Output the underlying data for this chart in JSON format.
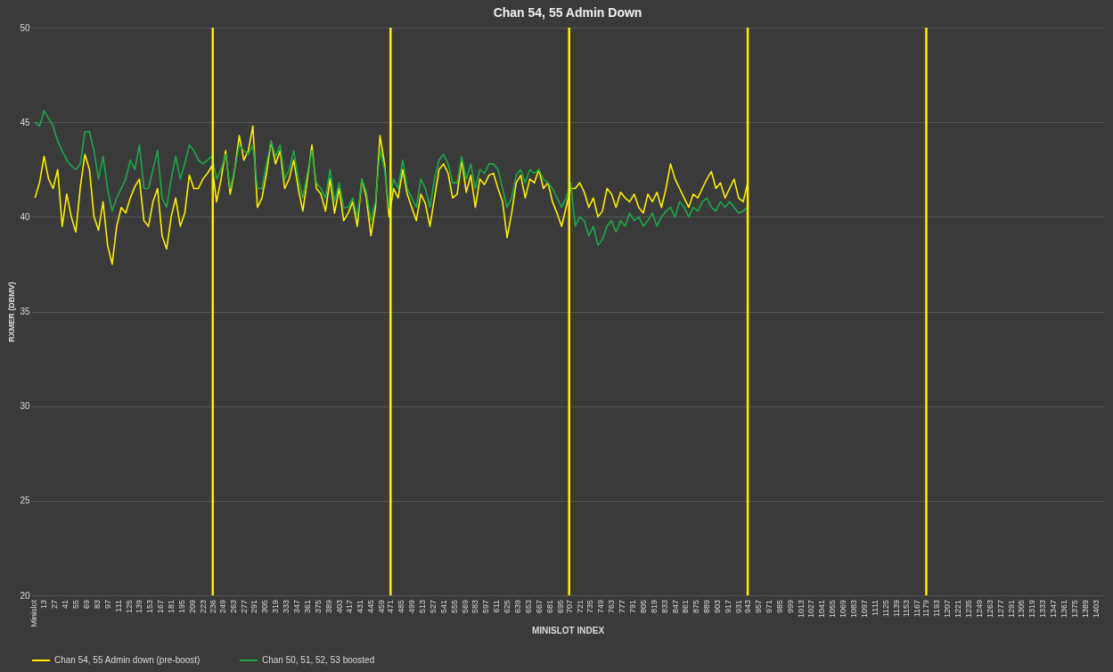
{
  "chart_data": {
    "type": "line",
    "title": "Chan 54, 55 Admin Down",
    "xlabel": "MINISLOT INDEX",
    "ylabel": "RXMER (DBMV)",
    "x": [
      1,
      7,
      13,
      19,
      25,
      31,
      37,
      43,
      49,
      55,
      61,
      67,
      73,
      79,
      85,
      91,
      97,
      103,
      109,
      115,
      121,
      127,
      133,
      139,
      145,
      151,
      157,
      163,
      169,
      175,
      181,
      187,
      193,
      199,
      205,
      211,
      217,
      223,
      229,
      235,
      241,
      247,
      253,
      259,
      265,
      271,
      277,
      283,
      289,
      295,
      301,
      307,
      313,
      319,
      325,
      331,
      337,
      343,
      349,
      355,
      361,
      367,
      373,
      379,
      385,
      391,
      397,
      403,
      409,
      415,
      421,
      427,
      433,
      439,
      445,
      451,
      457,
      463,
      469,
      475,
      481,
      487,
      493,
      499,
      505,
      511,
      517,
      523,
      529,
      535,
      541,
      547,
      553,
      559,
      565,
      571,
      577,
      583,
      589,
      595,
      601,
      607,
      613,
      619,
      625,
      631,
      637,
      643,
      649,
      655,
      661,
      667,
      673,
      679,
      685,
      691,
      697,
      703,
      709,
      715,
      721,
      727,
      733,
      739,
      745,
      751,
      757,
      763,
      769,
      775,
      781,
      787,
      793,
      799,
      805,
      811,
      817,
      823,
      829,
      835,
      841,
      847,
      853,
      859,
      865,
      871,
      877,
      883,
      889,
      895,
      901,
      907,
      913,
      919,
      925,
      931,
      937,
      943
    ],
    "series": [
      {
        "name": "Chan 54, 55 Admin down (pre-boost)",
        "color": "#ffee00",
        "values": [
          41,
          41.8,
          43.2,
          42,
          41.5,
          42.5,
          39.5,
          41.2,
          40,
          39.2,
          41.6,
          43.3,
          42.5,
          40,
          39.3,
          40.8,
          38.5,
          37.5,
          39.5,
          40.5,
          40.2,
          41,
          41.6,
          42,
          39.8,
          39.5,
          40.8,
          41.5,
          39,
          38.3,
          40,
          41,
          39.5,
          40.2,
          42.2,
          41.5,
          41.5,
          42,
          42.3,
          42.7,
          40.8,
          42,
          43.5,
          41.2,
          42.5,
          44.3,
          43,
          43.5,
          44.8,
          40.5,
          41,
          42.3,
          44,
          42.8,
          43.5,
          41.5,
          42,
          43,
          41.5,
          40.3,
          42,
          43.8,
          41.5,
          41.2,
          40.3,
          42,
          40.2,
          41.5,
          39.8,
          40.2,
          40.8,
          39.5,
          42,
          41,
          39,
          40.5,
          44.3,
          42.8,
          40,
          41.5,
          41,
          42.5,
          41.2,
          40.5,
          39.8,
          41.2,
          40.7,
          39.5,
          41,
          42.5,
          42.8,
          42.3,
          41,
          41.2,
          43,
          41.3,
          42.2,
          40.5,
          42,
          41.7,
          42.2,
          42.3,
          41.5,
          40.8,
          38.9,
          40.2,
          41.8,
          42.2,
          41,
          42,
          41.8,
          42.5,
          41.5,
          41.8,
          40.8,
          40.2,
          39.5,
          40.5,
          41.5,
          41.5,
          41.8,
          41.3,
          40.5,
          41,
          40,
          40.3,
          41.5,
          41.2,
          40.5,
          41.3,
          41,
          40.8,
          41.2,
          40.5,
          40.2,
          41.2,
          40.8,
          41.3,
          40.5,
          41.5,
          42.8,
          42,
          41.5,
          41,
          40.5,
          41.2,
          41,
          41.5,
          42,
          42.4,
          41.5,
          41.8,
          41,
          41.5,
          42,
          41,
          40.8,
          41.8
        ]
      },
      {
        "name": "Chan 50, 51, 52, 53 boosted",
        "color": "#1aaa48",
        "values": [
          45,
          44.8,
          45.6,
          45.2,
          44.8,
          44,
          43.5,
          43,
          42.7,
          42.5,
          42.8,
          44.5,
          44.5,
          43.5,
          42,
          43.2,
          41.5,
          40.3,
          41,
          41.5,
          42,
          43,
          42.5,
          43.8,
          41.5,
          41.5,
          42.5,
          43.5,
          41,
          40.5,
          42,
          43.2,
          42,
          42.8,
          43.8,
          43.5,
          43,
          42.8,
          43,
          43.2,
          42,
          42.5,
          43.3,
          41.5,
          42.5,
          43.8,
          43.5,
          43.3,
          43.8,
          41.5,
          41.5,
          42.8,
          44,
          43.2,
          43.8,
          42,
          42.5,
          43.5,
          42,
          41,
          42.3,
          43.5,
          41.8,
          41.5,
          41,
          42.5,
          40.8,
          41.8,
          40.5,
          40.5,
          41,
          40,
          42,
          41.3,
          39.8,
          40.8,
          43.5,
          42.5,
          40.5,
          42,
          41.5,
          43,
          41.5,
          41,
          40.5,
          42,
          41.5,
          40.5,
          42,
          43,
          43.3,
          42.8,
          41.8,
          41.8,
          43.2,
          42,
          42.8,
          41.5,
          42.5,
          42.3,
          42.8,
          42.8,
          42.5,
          41.5,
          40.5,
          41,
          42.2,
          42.5,
          41.8,
          42.5,
          42.3,
          42.5,
          42,
          41.8,
          41.5,
          41,
          40.5,
          41,
          41.8,
          39.5,
          40,
          39.8,
          39,
          39.5,
          38.5,
          38.8,
          39.5,
          39.8,
          39.2,
          39.8,
          39.5,
          40.2,
          39.8,
          40,
          39.5,
          39.8,
          40.2,
          39.5,
          40,
          40.3,
          40.5,
          40,
          40.8,
          40.5,
          40,
          40.5,
          40.3,
          40.8,
          41,
          40.5,
          40.3,
          40.8,
          40.5,
          40.8,
          40.5,
          40.2,
          40.3,
          40.5
        ]
      }
    ],
    "ref_lines": [
      {
        "axis": "x",
        "value": 236,
        "color": "#ffee00"
      },
      {
        "axis": "x",
        "value": 471,
        "color": "#ffee00"
      },
      {
        "axis": "x",
        "value": 707,
        "color": "#ffee00"
      },
      {
        "axis": "x",
        "value": 943,
        "color": "#ffee00"
      },
      {
        "axis": "x",
        "value": 1179,
        "color": "#ffee00"
      }
    ],
    "xlim": [
      -4,
      1414
    ],
    "xticks": [
      {
        "value": -1,
        "label": "Minislot"
      },
      13,
      27,
      41,
      55,
      69,
      83,
      97,
      111,
      125,
      139,
      153,
      167,
      181,
      195,
      209,
      223,
      236,
      249,
      263,
      277,
      291,
      305,
      319,
      333,
      347,
      361,
      375,
      389,
      403,
      417,
      431,
      445,
      459,
      471,
      485,
      499,
      513,
      527,
      541,
      555,
      569,
      583,
      597,
      611,
      625,
      639,
      653,
      667,
      681,
      695,
      707,
      721,
      735,
      749,
      763,
      777,
      791,
      805,
      819,
      833,
      847,
      861,
      875,
      889,
      903,
      917,
      931,
      943,
      957,
      971,
      985,
      999,
      1013,
      1027,
      1041,
      1055,
      1069,
      1083,
      1097,
      1111,
      1125,
      1139,
      1153,
      1167,
      1179,
      1193,
      1207,
      1221,
      1235,
      1249,
      1263,
      1277,
      1291,
      1305,
      1319,
      1333,
      1347,
      1361,
      1375,
      1389,
      1403
    ],
    "ylim": [
      20,
      50
    ],
    "yticks": [
      20,
      25,
      30,
      35,
      40,
      45,
      50
    ],
    "grid": "y",
    "legend": "bottom",
    "marker": "none",
    "line_style": "solid"
  }
}
